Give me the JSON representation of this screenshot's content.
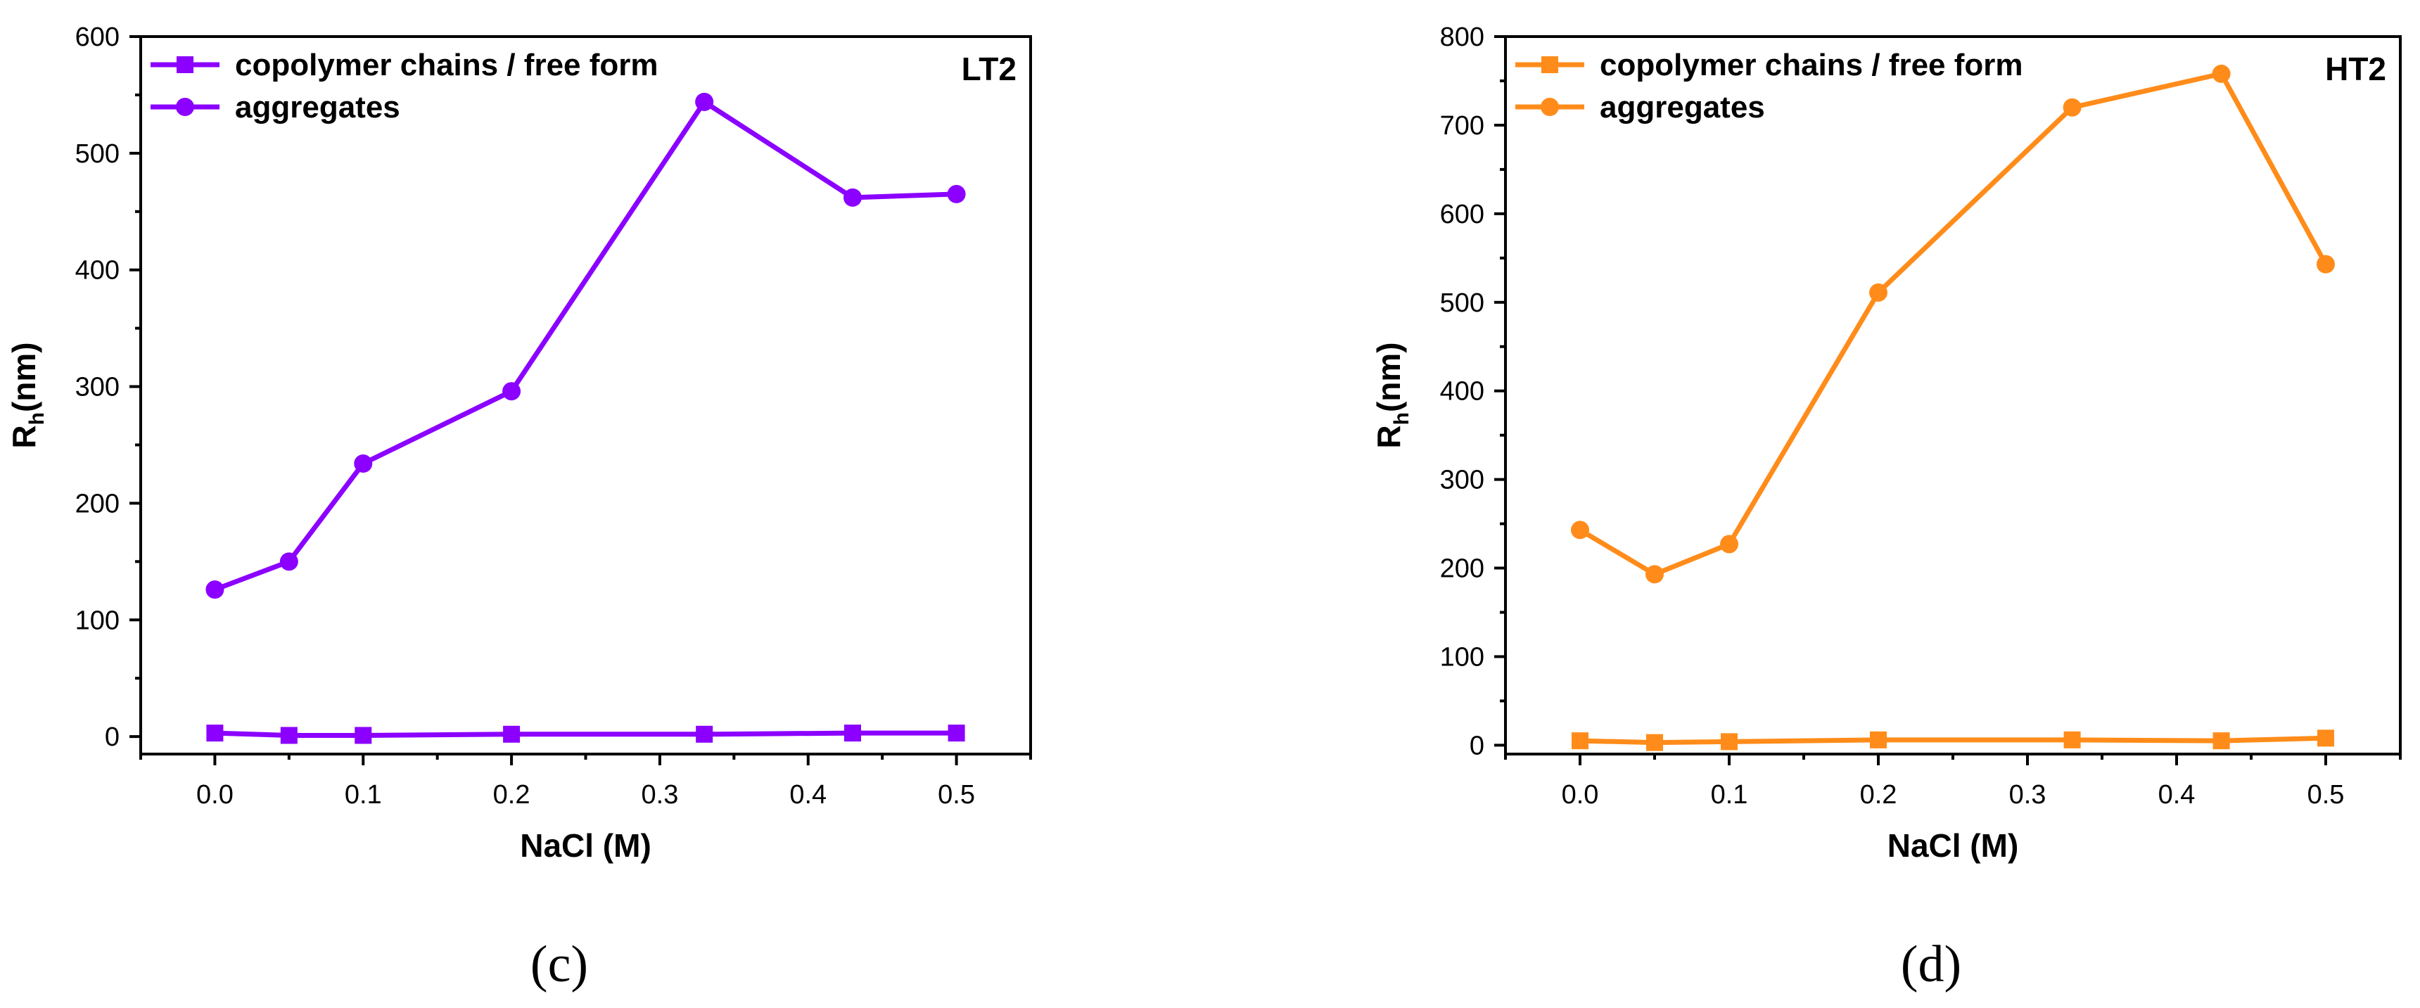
{
  "chart_data": [
    {
      "type": "line",
      "panel_tag": "LT2",
      "caption": "(c)",
      "xlabel": "NaCl (M)",
      "ylabel_main": "R",
      "ylabel_sub": "h",
      "ylabel_tail": "(nm)",
      "xlim": [
        -0.05,
        0.55
      ],
      "ylim": [
        -15,
        600
      ],
      "xticks": [
        "0.0",
        "0.1",
        "0.2",
        "0.3",
        "0.4",
        "0.5"
      ],
      "xtick_values": [
        0,
        0.1,
        0.2,
        0.3,
        0.4,
        0.5
      ],
      "yticks": [
        "0",
        "100",
        "200",
        "300",
        "400",
        "500",
        "600"
      ],
      "ytick_values": [
        0,
        100,
        200,
        300,
        400,
        500,
        600
      ],
      "legend_position": "top-left",
      "color": "#8B00FF",
      "series": [
        {
          "name": "copolymer chains / free form",
          "marker": "square",
          "x": [
            0,
            0.05,
            0.1,
            0.2,
            0.33,
            0.43,
            0.5
          ],
          "values": [
            3,
            1,
            1,
            2,
            2,
            3,
            3
          ]
        },
        {
          "name": "aggregates",
          "marker": "circle",
          "x": [
            0,
            0.05,
            0.1,
            0.2,
            0.33,
            0.43,
            0.5
          ],
          "values": [
            126,
            150,
            234,
            296,
            544,
            462,
            465
          ]
        }
      ]
    },
    {
      "type": "line",
      "panel_tag": "HT2",
      "caption": "(d)",
      "xlabel": "NaCl (M)",
      "ylabel_main": "R",
      "ylabel_sub": "h",
      "ylabel_tail": "(nm)",
      "xlim": [
        -0.05,
        0.55
      ],
      "ylim": [
        -10,
        800
      ],
      "xticks": [
        "0.0",
        "0.1",
        "0.2",
        "0.3",
        "0.4",
        "0.5"
      ],
      "xtick_values": [
        0,
        0.1,
        0.2,
        0.3,
        0.4,
        0.5
      ],
      "yticks": [
        "0",
        "100",
        "200",
        "300",
        "400",
        "500",
        "600",
        "700",
        "800"
      ],
      "ytick_values": [
        0,
        100,
        200,
        300,
        400,
        500,
        600,
        700,
        800
      ],
      "legend_position": "top-left",
      "color": "#FF8C1A",
      "series": [
        {
          "name": "copolymer chains / free form",
          "marker": "square",
          "x": [
            0,
            0.05,
            0.1,
            0.2,
            0.33,
            0.43,
            0.5
          ],
          "values": [
            5,
            3,
            4,
            6,
            6,
            5,
            8
          ]
        },
        {
          "name": "aggregates",
          "marker": "circle",
          "x": [
            0,
            0.05,
            0.1,
            0.2,
            0.33,
            0.43,
            0.5
          ],
          "values": [
            243,
            193,
            227,
            511,
            720,
            758,
            543
          ]
        }
      ]
    }
  ]
}
